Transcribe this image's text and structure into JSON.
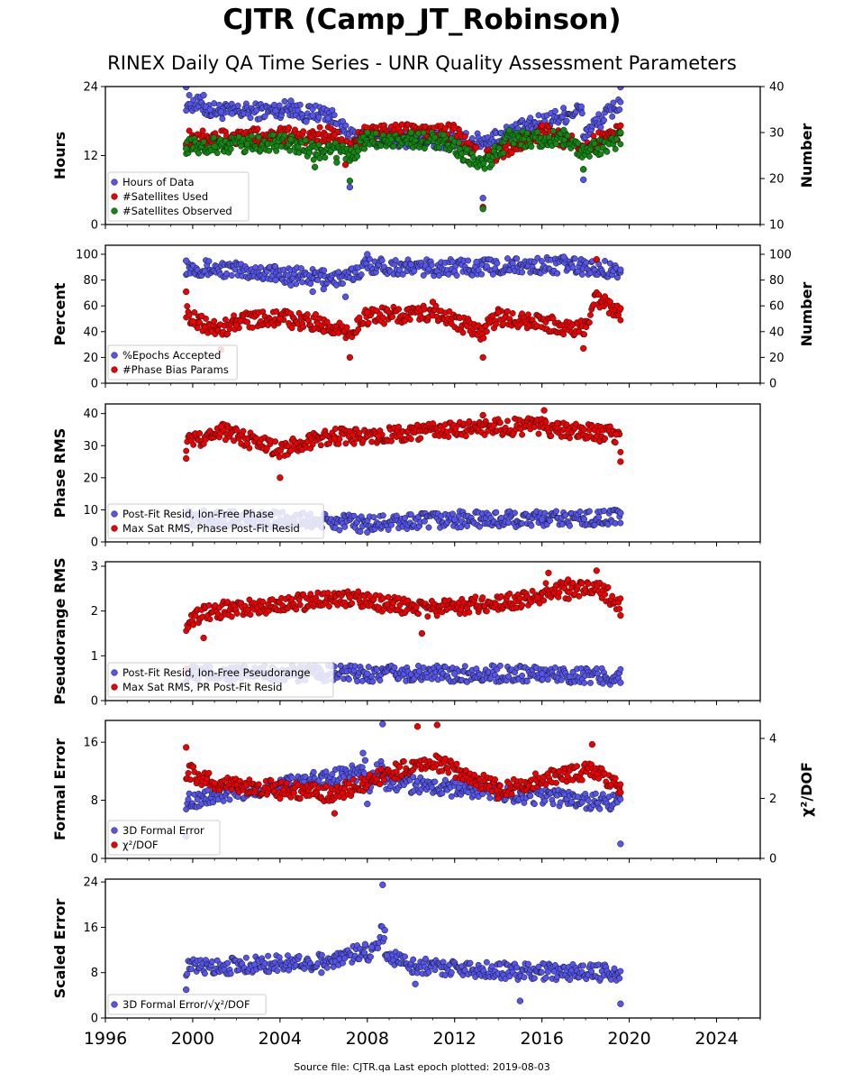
{
  "title": "CJTR (Camp_JT_Robinson)",
  "subtitle": "RINEX Daily QA Time Series - UNR Quality Assessment Parameters",
  "footer": "Source file: CJTR.qa Last epoch plotted: 2019-08-03",
  "colors": {
    "blue": "#5555ee",
    "red": "#ee0000",
    "green": "#118811",
    "stroke": "#111111"
  },
  "chart_data": [
    {
      "type": "scatter",
      "ylabel": "Hours",
      "ylabel_right": "Number",
      "xlim": [
        1996,
        2026
      ],
      "ylim": [
        0,
        24
      ],
      "ylim_right": [
        10,
        40
      ],
      "yticks": [
        0,
        12,
        24
      ],
      "yticks_right": [
        10,
        20,
        30,
        40
      ],
      "legend_position": "lower-left",
      "series": [
        {
          "name": "Hours of Data",
          "axis": "left",
          "color": "#5555ee",
          "points": [
            [
              1999.7,
              23.9
            ],
            [
              2000.5,
              22.5
            ],
            [
              2000.6,
              20.5
            ],
            [
              2000.8,
              20.0
            ],
            [
              2001.3,
              19.6
            ],
            [
              2001.8,
              19.3
            ],
            [
              2003.8,
              19.8
            ],
            [
              2004.5,
              21.5
            ],
            [
              2005.2,
              17.9
            ],
            [
              2005.5,
              19.0
            ],
            [
              2006.2,
              18.5
            ],
            [
              2007.2,
              6.5
            ],
            [
              2013.3,
              4.6
            ],
            [
              2017.9,
              7.8
            ],
            [
              2017.8,
              20.5
            ],
            [
              2019.6,
              23.9
            ]
          ]
        },
        {
          "name": "#Satellites Used",
          "axis": "right",
          "color": "#ee0000",
          "points": [
            [
              1999.7,
              27.5
            ],
            [
              2003.0,
              28.5
            ],
            [
              2006.5,
              29.5
            ],
            [
              2007.0,
              23.0
            ],
            [
              2008.0,
              31.0
            ],
            [
              2012.0,
              31.0
            ],
            [
              2013.3,
              13.8
            ],
            [
              2016.0,
              31.5
            ],
            [
              2017.9,
              22.0
            ],
            [
              2019.6,
              31.5
            ]
          ]
        },
        {
          "name": "#Satellites Observed",
          "axis": "right",
          "color": "#118811",
          "points": [
            [
              1999.7,
              26.5
            ],
            [
              2001.0,
              27.0
            ],
            [
              2002.5,
              27.5
            ],
            [
              2004.5,
              28.5
            ],
            [
              2005.6,
              22.5
            ],
            [
              2006.6,
              23.5
            ],
            [
              2007.2,
              19.5
            ],
            [
              2008.0,
              30.0
            ],
            [
              2010.0,
              30.0
            ],
            [
              2011.5,
              29.5
            ],
            [
              2013.3,
              13.4
            ],
            [
              2014.5,
              30.5
            ],
            [
              2017.0,
              30.5
            ],
            [
              2017.9,
              22.0
            ],
            [
              2019.6,
              30.0
            ]
          ]
        }
      ]
    },
    {
      "type": "scatter",
      "ylabel": "Percent",
      "ylabel_right": "Number",
      "xlim": [
        1996,
        2026
      ],
      "ylim": [
        0,
        107
      ],
      "ylim_right": [
        0,
        107
      ],
      "yticks": [
        0,
        20,
        40,
        60,
        80,
        100
      ],
      "yticks_right": [
        0,
        20,
        40,
        60,
        80,
        100
      ],
      "legend_position": "lower-left",
      "series": [
        {
          "name": "%Epochs Accepted",
          "axis": "left",
          "color": "#5555ee",
          "points": [
            [
              1999.7,
              95
            ],
            [
              2003.8,
              80
            ],
            [
              2004.5,
              76
            ],
            [
              2005.5,
              71
            ],
            [
              2006.0,
              73
            ],
            [
              2007.0,
              67
            ],
            [
              2008.0,
              100
            ],
            [
              2010.0,
              92
            ],
            [
              2013.0,
              94
            ],
            [
              2017.0,
              98
            ],
            [
              2019.6,
              88
            ]
          ]
        },
        {
          "name": "#Phase Bias Params",
          "axis": "right",
          "color": "#ee0000",
          "points": [
            [
              1999.7,
              71
            ],
            [
              2000.0,
              48
            ],
            [
              2001.3,
              26
            ],
            [
              2002.0,
              45
            ],
            [
              2004.0,
              50
            ],
            [
              2006.0,
              40
            ],
            [
              2007.2,
              20
            ],
            [
              2008.0,
              55
            ],
            [
              2011.0,
              63
            ],
            [
              2013.3,
              20
            ],
            [
              2014.0,
              55
            ],
            [
              2017.9,
              27
            ],
            [
              2018.5,
              96
            ],
            [
              2019.6,
              58
            ]
          ]
        }
      ]
    },
    {
      "type": "scatter",
      "ylabel": "Phase RMS",
      "xlim": [
        1996,
        2026
      ],
      "ylim": [
        0,
        43
      ],
      "yticks": [
        0,
        10,
        20,
        30,
        40
      ],
      "legend_position": "lower-left",
      "series": [
        {
          "name": "Post-Fit Resid, Ion-Free Phase",
          "axis": "left",
          "color": "#5555ee",
          "points": [
            [
              1999.7,
              8
            ],
            [
              2004.0,
              7
            ],
            [
              2008.0,
              3
            ],
            [
              2012.0,
              7
            ],
            [
              2016.0,
              7
            ],
            [
              2019.6,
              9
            ]
          ]
        },
        {
          "name": "Max Sat RMS, Phase Post-Fit Resid",
          "axis": "left",
          "color": "#ee0000",
          "points": [
            [
              1999.7,
              26
            ],
            [
              2001.3,
              36
            ],
            [
              2004.0,
              20
            ],
            [
              2006.5,
              32
            ],
            [
              2008.5,
              33
            ],
            [
              2013.3,
              39.5
            ],
            [
              2016.1,
              41
            ],
            [
              2016.7,
              37
            ],
            [
              2019.4,
              33.5
            ],
            [
              2019.6,
              25
            ]
          ]
        }
      ]
    },
    {
      "type": "scatter",
      "ylabel": "Pseudorange RMS",
      "xlim": [
        1996,
        2026
      ],
      "ylim": [
        0,
        3.1
      ],
      "yticks": [
        0,
        1,
        2,
        3
      ],
      "legend_position": "lower-left",
      "series": [
        {
          "name": "Post-Fit Resid, Ion-Free Pseudorange",
          "axis": "left",
          "color": "#5555ee",
          "points": [
            [
              1999.7,
              0.6
            ],
            [
              2004.0,
              0.6
            ],
            [
              2008.0,
              0.6
            ],
            [
              2012.0,
              0.6
            ],
            [
              2016.0,
              0.6
            ],
            [
              2019.6,
              0.4
            ]
          ]
        },
        {
          "name": "Max Sat RMS, PR Post-Fit Resid",
          "axis": "left",
          "color": "#ee0000",
          "points": [
            [
              1999.7,
              0.7
            ],
            [
              2000.5,
              1.4
            ],
            [
              2007.2,
              2.3
            ],
            [
              2010.5,
              1.5
            ],
            [
              2015.8,
              2.3
            ],
            [
              2016.3,
              2.85
            ],
            [
              2017.2,
              2.7
            ],
            [
              2018.5,
              2.9
            ],
            [
              2019.6,
              1.9
            ]
          ]
        }
      ]
    },
    {
      "type": "scatter",
      "ylabel": "Formal Error",
      "ylabel_right": "χ²/DOF",
      "xlim": [
        1996,
        2026
      ],
      "ylim": [
        0,
        19
      ],
      "ylim_right": [
        0,
        4.6
      ],
      "yticks": [
        0,
        8,
        16
      ],
      "yticks_right": [
        0,
        2,
        4
      ],
      "legend_position": "lower-left",
      "series": [
        {
          "name": "3D Formal Error",
          "axis": "left",
          "color": "#5555ee",
          "points": [
            [
              1999.7,
              3
            ],
            [
              2007.8,
              14.5
            ],
            [
              2007.9,
              13.5
            ],
            [
              2008.0,
              7.5
            ],
            [
              2008.7,
              18.5
            ],
            [
              2008.8,
              10.5
            ],
            [
              2019.6,
              2
            ]
          ]
        },
        {
          "name": "χ²/DOF",
          "axis": "right",
          "color": "#ee0000",
          "points": [
            [
              1999.7,
              3.7
            ],
            [
              2001.0,
              2.5
            ],
            [
              2004.0,
              2.0
            ],
            [
              2006.5,
              1.5
            ],
            [
              2010.3,
              4.4
            ],
            [
              2011.2,
              4.45
            ],
            [
              2014.0,
              2.0
            ],
            [
              2018.3,
              3.8
            ],
            [
              2019.6,
              2.2
            ]
          ]
        }
      ]
    },
    {
      "type": "scatter",
      "ylabel": "Scaled Error",
      "xlim": [
        1996,
        2026
      ],
      "ylim": [
        0,
        24.5
      ],
      "yticks": [
        0,
        8,
        16,
        24
      ],
      "xticks": [
        1996,
        2000,
        2004,
        2008,
        2012,
        2016,
        2020,
        2024
      ],
      "legend_position": "lower-left",
      "series": [
        {
          "name": "3D Formal Error/√χ²/DOF",
          "axis": "left",
          "color": "#5555ee",
          "points": [
            [
              1999.7,
              5
            ],
            [
              2005.9,
              8
            ],
            [
              2007.9,
              13
            ],
            [
              2008.2,
              12.5
            ],
            [
              2008.7,
              23.5
            ],
            [
              2008.8,
              15.5
            ],
            [
              2008.9,
              11
            ],
            [
              2010.2,
              6
            ],
            [
              2015.0,
              3
            ],
            [
              2019.6,
              2.5
            ]
          ]
        }
      ]
    }
  ]
}
